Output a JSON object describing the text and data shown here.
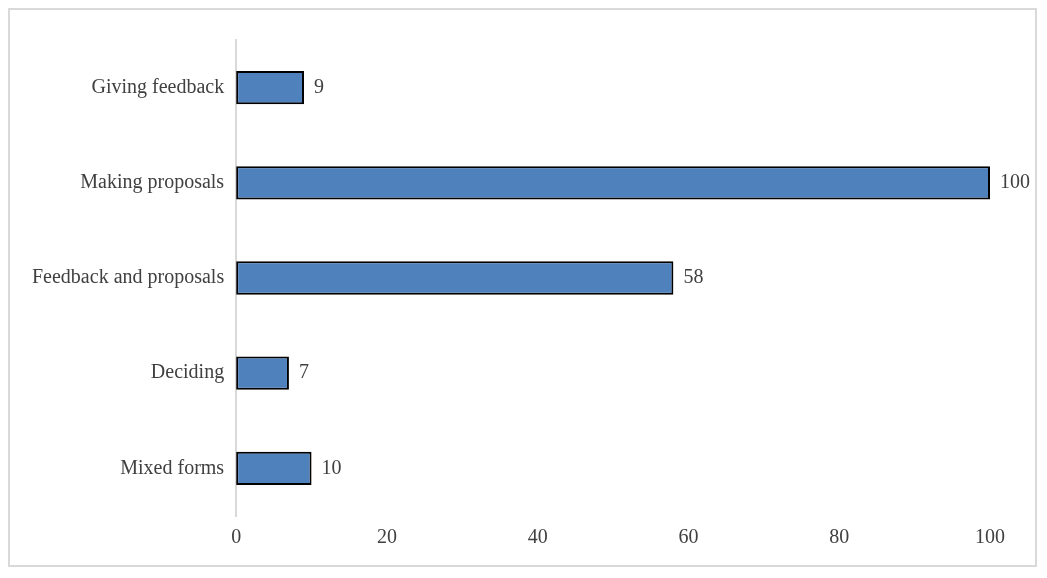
{
  "chart_data": {
    "type": "bar",
    "orientation": "horizontal",
    "categories": [
      "Giving feedback",
      "Making proposals",
      "Feedback and proposals",
      "Deciding",
      "Mixed forms"
    ],
    "values": [
      9,
      100,
      58,
      7,
      10
    ],
    "color": "#4f81bd",
    "xlim": [
      0,
      100
    ],
    "xticks": [
      0,
      20,
      40,
      60,
      80,
      100
    ],
    "grid": false,
    "legend": false,
    "data_labels": true
  }
}
